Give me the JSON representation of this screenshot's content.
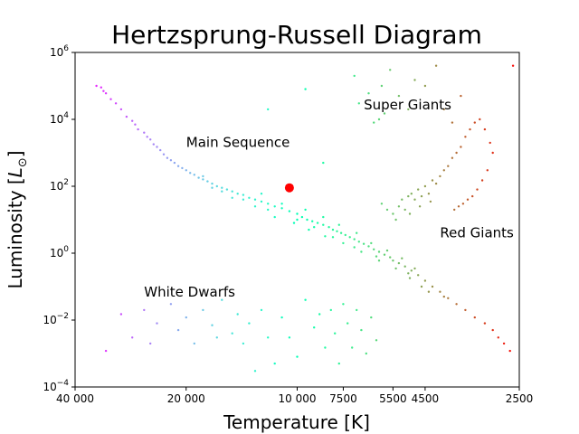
{
  "chart_data": {
    "type": "scatter",
    "title": "Hertzsprung-Russell Diagram",
    "xlabel": "Temperature [K]",
    "ylabel_main": "Luminosity [",
    "ylabel_sym": "L",
    "ylabel_sub": "⊙",
    "ylabel_close": "]",
    "x_scale": "log",
    "x_inverted": true,
    "y_scale": "log",
    "xlim": [
      40000,
      2500
    ],
    "ylim": [
      0.0001,
      1000000
    ],
    "grid": false,
    "x_ticks": [
      {
        "value": 40000,
        "label": "40 000"
      },
      {
        "value": 20000,
        "label": "20 000"
      },
      {
        "value": 10000,
        "label": "10 000"
      },
      {
        "value": 7500,
        "label": "7500"
      },
      {
        "value": 5500,
        "label": "5500"
      },
      {
        "value": 4500,
        "label": "4500"
      },
      {
        "value": 2500,
        "label": "2500"
      }
    ],
    "y_ticks": [
      {
        "value": 0.0001,
        "base": "10",
        "exp": "−4"
      },
      {
        "value": 0.01,
        "base": "10",
        "exp": "−2"
      },
      {
        "value": 1,
        "base": "10",
        "exp": "0"
      },
      {
        "value": 100,
        "base": "10",
        "exp": "2"
      },
      {
        "value": 10000,
        "base": "10",
        "exp": "4"
      },
      {
        "value": 1000000,
        "base": "10",
        "exp": "6"
      }
    ],
    "annotations": [
      {
        "text": "Main Sequence",
        "x": 20000,
        "y": 1500
      },
      {
        "text": "Super Giants",
        "x": 6600,
        "y": 20000
      },
      {
        "text": "Red Giants",
        "x": 4100,
        "y": 3
      },
      {
        "text": "White Dwarfs",
        "x": 26000,
        "y": 0.05
      }
    ],
    "highlight": {
      "x": 10500,
      "y": 90,
      "color": "#ff0000"
    },
    "colormap": "rainbow",
    "series": [
      {
        "points": [
          [
            35000,
            100000
          ],
          [
            34000,
            90000
          ],
          [
            33500,
            70000
          ],
          [
            33000,
            60000
          ],
          [
            32000,
            40000
          ],
          [
            31000,
            30000
          ],
          [
            30000,
            20000
          ],
          [
            29000,
            12000
          ],
          [
            28000,
            9000
          ],
          [
            27500,
            7000
          ],
          [
            27000,
            5000
          ],
          [
            26000,
            4000
          ],
          [
            25500,
            3000
          ],
          [
            25000,
            2500
          ],
          [
            24500,
            1800
          ],
          [
            24000,
            1500
          ],
          [
            23500,
            1200
          ],
          [
            23000,
            900
          ],
          [
            22500,
            700
          ],
          [
            22000,
            600
          ],
          [
            21500,
            500
          ],
          [
            21000,
            400
          ],
          [
            20500,
            350
          ],
          [
            20000,
            300
          ],
          [
            19500,
            250
          ],
          [
            19000,
            220
          ],
          [
            18500,
            180
          ],
          [
            18000,
            160
          ],
          [
            17500,
            140
          ],
          [
            17000,
            120
          ],
          [
            16500,
            100
          ],
          [
            16000,
            90
          ],
          [
            15500,
            80
          ],
          [
            15000,
            70
          ],
          [
            14500,
            60
          ],
          [
            14000,
            55
          ],
          [
            13500,
            45
          ],
          [
            13000,
            40
          ],
          [
            12500,
            35
          ],
          [
            12000,
            30
          ],
          [
            11500,
            25
          ],
          [
            11000,
            22
          ],
          [
            10500,
            18
          ],
          [
            10000,
            15
          ],
          [
            9700,
            12
          ],
          [
            9400,
            10
          ],
          [
            9100,
            9
          ],
          [
            8800,
            8
          ],
          [
            8500,
            7
          ],
          [
            8200,
            6
          ],
          [
            8000,
            5
          ],
          [
            7800,
            4.5
          ],
          [
            7600,
            4
          ],
          [
            7400,
            3.5
          ],
          [
            7200,
            3
          ],
          [
            7000,
            2.6
          ],
          [
            6800,
            2.2
          ],
          [
            6600,
            1.9
          ],
          [
            6400,
            1.6
          ],
          [
            6200,
            1.3
          ],
          [
            6000,
            1.1
          ],
          [
            5800,
            0.9
          ],
          [
            5600,
            0.75
          ],
          [
            5500,
            0.6
          ],
          [
            5300,
            0.5
          ],
          [
            5100,
            0.4
          ],
          [
            4900,
            0.3
          ],
          [
            4700,
            0.22
          ],
          [
            4500,
            0.15
          ],
          [
            4300,
            0.1
          ],
          [
            4100,
            0.07
          ],
          [
            3900,
            0.045
          ],
          [
            3700,
            0.03
          ],
          [
            3500,
            0.02
          ],
          [
            3300,
            0.012
          ],
          [
            3100,
            0.008
          ],
          [
            2950,
            0.005
          ],
          [
            2850,
            0.003
          ],
          [
            2750,
            0.002
          ],
          [
            2650,
            0.0012
          ],
          [
            18000,
            200
          ],
          [
            16000,
            70
          ],
          [
            14000,
            40
          ],
          [
            12000,
            20
          ],
          [
            10000,
            10
          ],
          [
            9000,
            6
          ],
          [
            8000,
            3
          ],
          [
            7000,
            1.5
          ],
          [
            6000,
            0.6
          ],
          [
            5000,
            0.25
          ],
          [
            12500,
            60
          ],
          [
            11000,
            30
          ],
          [
            9500,
            20
          ],
          [
            8500,
            12
          ],
          [
            7700,
            7
          ],
          [
            6900,
            4
          ],
          [
            6300,
            2
          ],
          [
            5700,
            1.2
          ],
          [
            5200,
            0.7
          ],
          [
            4800,
            0.35
          ],
          [
            17000,
            90
          ],
          [
            15000,
            45
          ],
          [
            13000,
            25
          ],
          [
            11500,
            12
          ],
          [
            10200,
            8
          ],
          [
            9300,
            5
          ],
          [
            8400,
            3.2
          ],
          [
            7500,
            2
          ],
          [
            6700,
            1.1
          ],
          [
            6100,
            0.8
          ],
          [
            5400,
            0.35
          ],
          [
            4950,
            0.18
          ],
          [
            4600,
            0.1
          ],
          [
            4400,
            0.07
          ],
          [
            4000,
            0.05
          ]
        ]
      },
      {
        "points": [
          [
            5900,
            30
          ],
          [
            5700,
            20
          ],
          [
            5500,
            15
          ],
          [
            5300,
            25
          ],
          [
            5200,
            40
          ],
          [
            5000,
            50
          ],
          [
            4900,
            60
          ],
          [
            4800,
            40
          ],
          [
            4700,
            80
          ],
          [
            4600,
            50
          ],
          [
            4500,
            100
          ],
          [
            4400,
            60
          ],
          [
            4300,
            150
          ],
          [
            4200,
            120
          ],
          [
            4100,
            200
          ],
          [
            4000,
            300
          ],
          [
            3900,
            400
          ],
          [
            3800,
            700
          ],
          [
            3700,
            1000
          ],
          [
            3600,
            1500
          ],
          [
            3500,
            3000
          ],
          [
            3400,
            5000
          ],
          [
            3300,
            8000
          ],
          [
            3200,
            10000
          ],
          [
            3100,
            5000
          ],
          [
            3000,
            2000
          ],
          [
            2950,
            1000
          ],
          [
            3050,
            300
          ],
          [
            3150,
            150
          ],
          [
            3250,
            80
          ],
          [
            3350,
            50
          ],
          [
            3450,
            40
          ],
          [
            3550,
            30
          ],
          [
            3650,
            25
          ],
          [
            3750,
            20
          ],
          [
            5100,
            20
          ],
          [
            5400,
            10
          ],
          [
            4950,
            15
          ],
          [
            4650,
            25
          ],
          [
            4350,
            35
          ]
        ]
      },
      {
        "points": [
          [
            12000,
            20000
          ],
          [
            9500,
            80000
          ],
          [
            7000,
            200000
          ],
          [
            6400,
            60000
          ],
          [
            5900,
            100000
          ],
          [
            5600,
            300000
          ],
          [
            5300,
            50000
          ],
          [
            5000,
            20000
          ],
          [
            4800,
            150000
          ],
          [
            4500,
            100000
          ],
          [
            4200,
            400000
          ],
          [
            6000,
            10000
          ],
          [
            6800,
            30000
          ],
          [
            8500,
            500
          ],
          [
            4000,
            20000
          ],
          [
            3800,
            8000
          ],
          [
            2600,
            400000
          ],
          [
            3600,
            50000
          ],
          [
            6200,
            8000
          ],
          [
            5800,
            15000
          ]
        ]
      },
      {
        "points": [
          [
            33000,
            0.0012
          ],
          [
            30000,
            0.015
          ],
          [
            28000,
            0.003
          ],
          [
            26000,
            0.02
          ],
          [
            25000,
            0.002
          ],
          [
            24000,
            0.008
          ],
          [
            22000,
            0.03
          ],
          [
            21000,
            0.005
          ],
          [
            20000,
            0.012
          ],
          [
            19000,
            0.002
          ],
          [
            18000,
            0.02
          ],
          [
            17000,
            0.007
          ],
          [
            16500,
            0.003
          ],
          [
            16000,
            0.04
          ],
          [
            15000,
            0.004
          ],
          [
            14500,
            0.015
          ],
          [
            14000,
            0.002
          ],
          [
            13500,
            0.008
          ],
          [
            13000,
            0.0003
          ],
          [
            12500,
            0.02
          ],
          [
            12000,
            0.003
          ],
          [
            11500,
            0.0005
          ],
          [
            11000,
            0.012
          ],
          [
            10500,
            0.003
          ],
          [
            10000,
            0.0008
          ],
          [
            9500,
            0.04
          ],
          [
            9000,
            0.006
          ],
          [
            8700,
            0.015
          ],
          [
            8400,
            0.0015
          ],
          [
            8100,
            0.02
          ],
          [
            7900,
            0.004
          ],
          [
            7700,
            0.0005
          ],
          [
            7500,
            0.03
          ],
          [
            7300,
            0.008
          ],
          [
            7100,
            0.0015
          ],
          [
            6900,
            0.02
          ],
          [
            6700,
            0.005
          ],
          [
            6500,
            0.001
          ],
          [
            6300,
            0.012
          ],
          [
            6100,
            0.0025
          ]
        ]
      }
    ]
  }
}
